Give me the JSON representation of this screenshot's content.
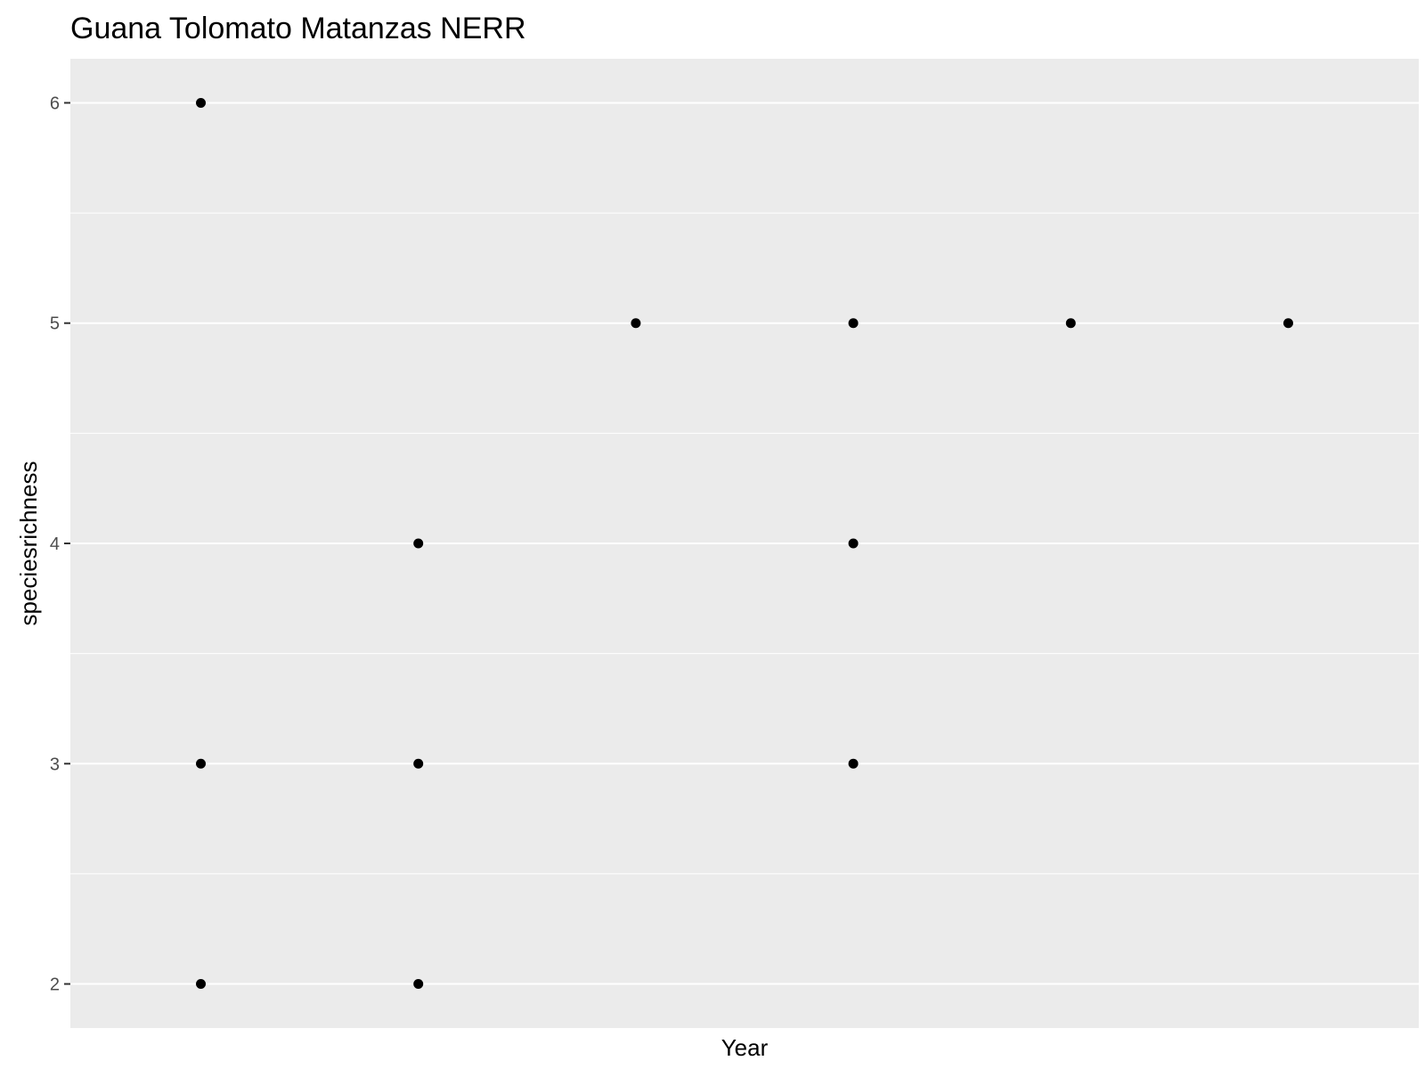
{
  "chart_data": {
    "type": "scatter",
    "title": "Guana Tolomato Matanzas NERR",
    "xlabel": "Year",
    "ylabel": "speciesrichness",
    "x_tick_labels": [],
    "y_ticks": [
      2,
      3,
      4,
      5,
      6
    ],
    "ylim": [
      1.8,
      6.2
    ],
    "xlim": [
      0.4,
      6.6
    ],
    "grid": true,
    "legend": "none",
    "colors": {
      "panel_background": "#ebebeb",
      "grid": "#ffffff",
      "point": "#000000",
      "tick": "#333333",
      "tick_label": "#4d4d4d"
    },
    "points": [
      {
        "x": 1,
        "y": 6
      },
      {
        "x": 1,
        "y": 3
      },
      {
        "x": 1,
        "y": 2
      },
      {
        "x": 2,
        "y": 4
      },
      {
        "x": 2,
        "y": 3
      },
      {
        "x": 2,
        "y": 2
      },
      {
        "x": 3,
        "y": 5
      },
      {
        "x": 4,
        "y": 5
      },
      {
        "x": 4,
        "y": 4
      },
      {
        "x": 4,
        "y": 3
      },
      {
        "x": 5,
        "y": 5
      },
      {
        "x": 6,
        "y": 5
      }
    ]
  }
}
